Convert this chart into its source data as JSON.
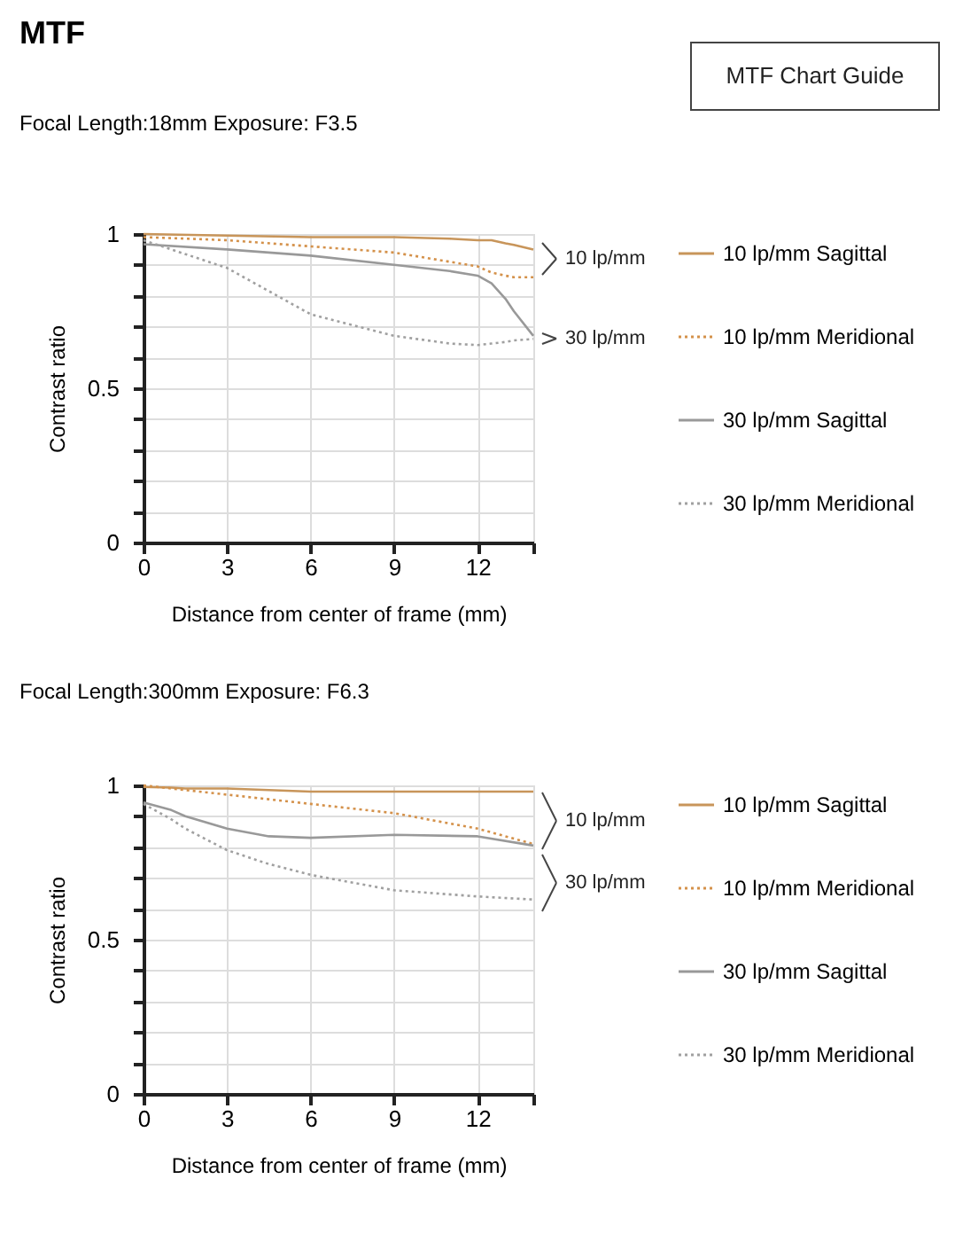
{
  "chart_data": [
    {
      "type": "line",
      "title": "MTF",
      "subtitle": "Focal Length:18mm    Exposure: F3.5",
      "xlabel": "Distance from center of frame (mm)",
      "ylabel": "Contrast ratio",
      "xlim": [
        0,
        14
      ],
      "ylim": [
        0,
        1
      ],
      "xticks": [
        0,
        3,
        6,
        9,
        12,
        {
          "value": 14,
          "label": null
        }
      ],
      "yticks": [
        0,
        {
          "value": 0.1,
          "label": null
        },
        {
          "value": 0.2,
          "label": null
        },
        {
          "value": 0.3,
          "label": null
        },
        {
          "value": 0.4,
          "label": null
        },
        0.5,
        {
          "value": 0.6,
          "label": null
        },
        {
          "value": 0.7,
          "label": null
        },
        {
          "value": 0.8,
          "label": null
        },
        {
          "value": 0.9,
          "label": null
        },
        1
      ],
      "grid": true,
      "legend": "right",
      "marker": "none",
      "annotations": [
        "MTF Chart Guide",
        "10 lp/mm",
        "30 lp/mm"
      ],
      "x": [
        0,
        3,
        6,
        9,
        11,
        12,
        12.5,
        13,
        13.3,
        14
      ],
      "series": [
        {
          "name": "10 lp/mm Sagittal",
          "color": "#c8955a",
          "line_style": "solid",
          "values": [
            1.0,
            0.995,
            0.99,
            0.99,
            0.985,
            0.98,
            0.98,
            0.97,
            0.965,
            0.95
          ]
        },
        {
          "name": "10 lp/mm Meridional",
          "color": "#d4914a",
          "line_style": "dotted",
          "values": [
            0.99,
            0.98,
            0.96,
            0.94,
            0.91,
            0.895,
            0.875,
            0.865,
            0.86,
            0.86
          ]
        },
        {
          "name": "30 lp/mm Sagittal",
          "color": "#999999",
          "line_style": "solid",
          "values": [
            0.967,
            0.95,
            0.93,
            0.9,
            0.88,
            0.865,
            0.84,
            0.79,
            0.75,
            0.67
          ]
        },
        {
          "name": "30 lp/mm Meridional",
          "color": "#a0a0a0",
          "line_style": "dotted",
          "values": [
            0.98,
            0.89,
            0.74,
            0.67,
            0.645,
            0.64,
            0.645,
            0.65,
            0.655,
            0.66
          ]
        }
      ]
    },
    {
      "type": "line",
      "title": "Focal Length:300mm    Exposure: F6.3",
      "xlabel": "Distance from center of frame (mm)",
      "ylabel": "Contrast ratio",
      "xlim": [
        0,
        14
      ],
      "ylim": [
        0,
        1
      ],
      "xticks": [
        0,
        3,
        6,
        9,
        12,
        {
          "value": 14,
          "label": null
        }
      ],
      "yticks": [
        0,
        {
          "value": 0.1,
          "label": null
        },
        {
          "value": 0.2,
          "label": null
        },
        {
          "value": 0.3,
          "label": null
        },
        {
          "value": 0.4,
          "label": null
        },
        0.5,
        {
          "value": 0.6,
          "label": null
        },
        {
          "value": 0.7,
          "label": null
        },
        {
          "value": 0.8,
          "label": null
        },
        {
          "value": 0.9,
          "label": null
        },
        1
      ],
      "grid": true,
      "legend": "right",
      "marker": "none",
      "annotations": [
        "10 lp/mm",
        "30 lp/mm"
      ],
      "x": [
        0,
        1,
        1.5,
        3,
        4.5,
        6,
        9,
        12,
        14
      ],
      "series": [
        {
          "name": "10 lp/mm Sagittal",
          "color": "#c8955a",
          "line_style": "solid",
          "values": [
            0.995,
            0.993,
            0.99,
            0.99,
            0.985,
            0.98,
            0.98,
            0.98,
            0.98
          ]
        },
        {
          "name": "10 lp/mm Meridional",
          "color": "#d4914a",
          "line_style": "dotted",
          "values": [
            1.0,
            0.99,
            0.985,
            0.97,
            0.955,
            0.94,
            0.91,
            0.86,
            0.81
          ]
        },
        {
          "name": "30 lp/mm Sagittal",
          "color": "#999999",
          "line_style": "solid",
          "values": [
            0.945,
            0.92,
            0.9,
            0.86,
            0.835,
            0.83,
            0.84,
            0.835,
            0.805
          ]
        },
        {
          "name": "30 lp/mm Meridional",
          "color": "#a0a0a0",
          "line_style": "dotted",
          "values": [
            0.94,
            0.89,
            0.86,
            0.79,
            0.745,
            0.71,
            0.66,
            0.64,
            0.63
          ]
        }
      ]
    }
  ]
}
